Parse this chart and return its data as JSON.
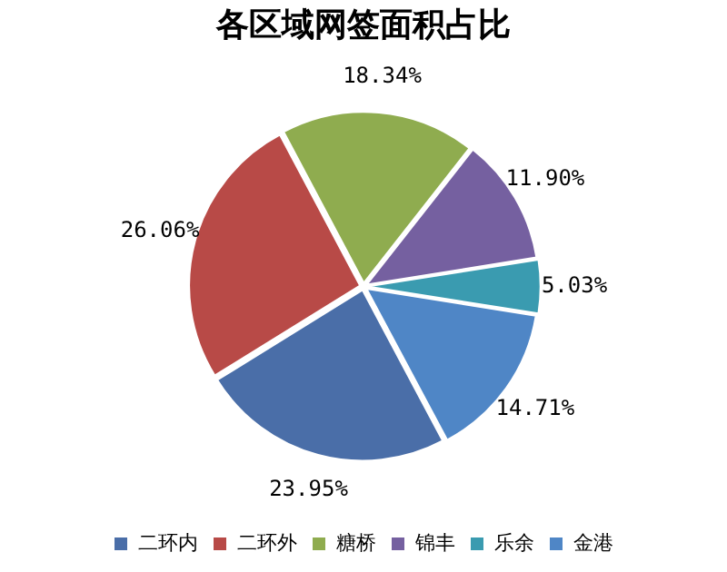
{
  "chart_data": {
    "type": "pie",
    "title": "各区域网签面积占比",
    "categories": [
      "二环内",
      "二环外",
      "糖桥",
      "锦丰",
      "乐余",
      "金港"
    ],
    "values": [
      23.95,
      26.06,
      18.34,
      11.9,
      5.03,
      14.71
    ],
    "colors": [
      "#4a6ea8",
      "#b84a47",
      "#8fac4f",
      "#7560a0",
      "#3a9bb0",
      "#4f86c6"
    ],
    "value_labels": [
      "23.95%",
      "26.06%",
      "18.34%",
      "11.90%",
      "5.03%",
      "14.71%"
    ],
    "legend": "bottom"
  }
}
